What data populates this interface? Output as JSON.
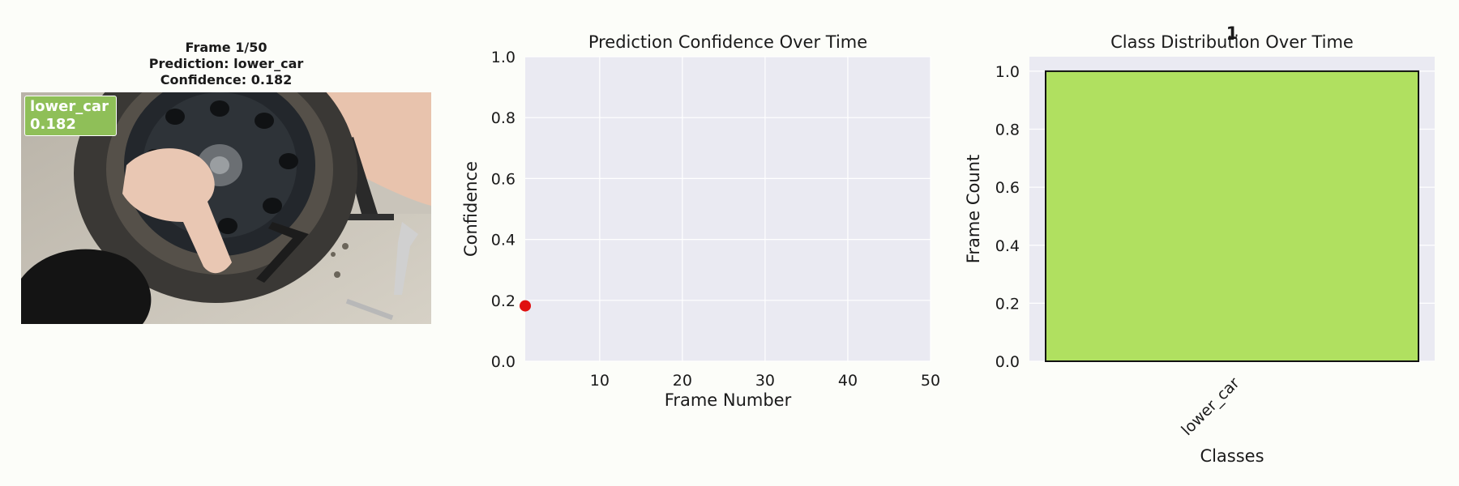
{
  "frame_panel": {
    "title_line1": "Frame 1/50",
    "title_line2": "Prediction: lower_car",
    "title_line3": "Confidence: 0.182",
    "badge_label": "lower_car",
    "badge_value": "0.182",
    "badge_color": "#8fbf58"
  },
  "chart_data": [
    {
      "type": "scatter",
      "title": "Prediction Confidence Over Time",
      "xlabel": "Frame Number",
      "ylabel": "Confidence",
      "xlim": [
        1,
        50
      ],
      "ylim": [
        0,
        1
      ],
      "xticks": [
        10,
        20,
        30,
        40,
        50
      ],
      "xtick_labels": [
        "10",
        "20",
        "30",
        "40",
        "50"
      ],
      "yticks": [
        0,
        0.2,
        0.4,
        0.6,
        0.8,
        1.0
      ],
      "ytick_labels": [
        "0.0",
        "0.2",
        "0.4",
        "0.6",
        "0.8",
        "1.0"
      ],
      "grid": true,
      "points": [
        {
          "x": 1,
          "y": 0.182
        }
      ],
      "point_color": "#e01010"
    },
    {
      "type": "bar",
      "title": "Class Distribution Over Time",
      "xlabel": "Classes",
      "ylabel": "Frame Count",
      "categories": [
        "lower_car"
      ],
      "values": [
        1
      ],
      "value_labels": [
        "1"
      ],
      "ylim": [
        0,
        1.05
      ],
      "yticks": [
        0,
        0.2,
        0.4,
        0.6,
        0.8,
        1.0
      ],
      "ytick_labels": [
        "0.0",
        "0.2",
        "0.4",
        "0.6",
        "0.8",
        "1.0"
      ],
      "grid": true,
      "bar_color": "#b0e060"
    }
  ]
}
